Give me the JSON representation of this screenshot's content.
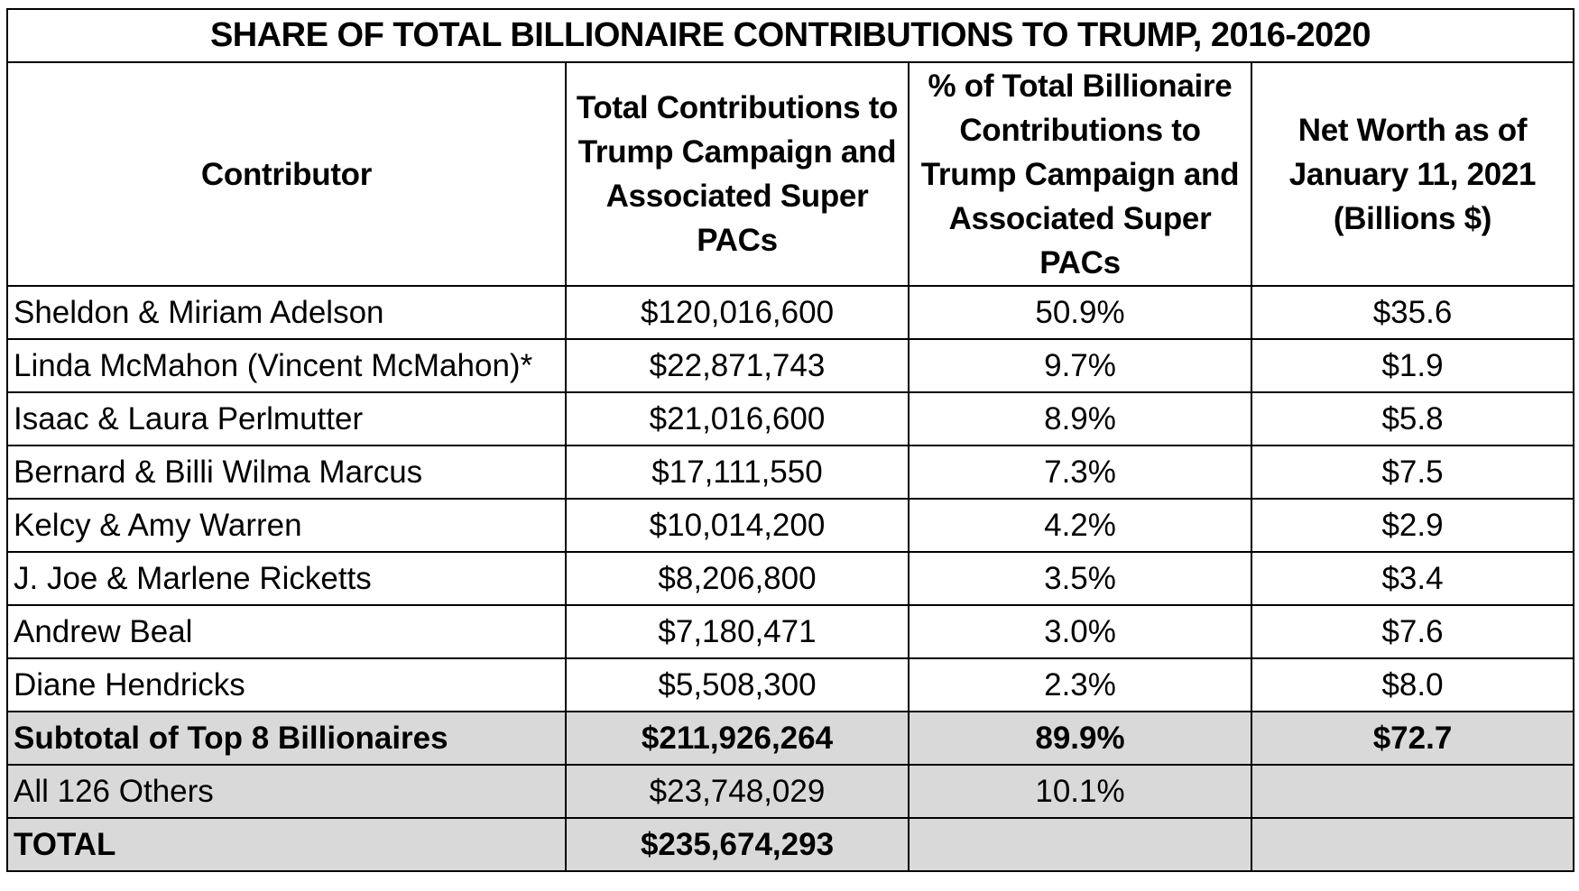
{
  "title": "SHARE OF TOTAL BILLIONAIRE CONTRIBUTIONS TO TRUMP, 2016-2020",
  "headers": [
    "Contributor",
    "Total Contributions to Trump Campaign and Associated Super PACs",
    "% of Total Billionaire Contributions to Trump Campaign and Associated Super PACs",
    "Net Worth as of January 11, 2021 (Billions $)"
  ],
  "rows": [
    {
      "contributor": "Sheldon & Miriam Adelson",
      "total": "$120,016,600",
      "percent": "50.9%",
      "net_worth": "$35.6"
    },
    {
      "contributor": "Linda McMahon (Vincent McMahon)*",
      "total": "$22,871,743",
      "percent": "9.7%",
      "net_worth": "$1.9"
    },
    {
      "contributor": "Isaac & Laura Perlmutter",
      "total": "$21,016,600",
      "percent": "8.9%",
      "net_worth": "$5.8"
    },
    {
      "contributor": "Bernard & Billi Wilma Marcus",
      "total": "$17,111,550",
      "percent": "7.3%",
      "net_worth": "$7.5"
    },
    {
      "contributor": "Kelcy & Amy Warren",
      "total": "$10,014,200",
      "percent": "4.2%",
      "net_worth": "$2.9"
    },
    {
      "contributor": "J. Joe & Marlene Ricketts",
      "total": "$8,206,800",
      "percent": "3.5%",
      "net_worth": "$3.4"
    },
    {
      "contributor": "Andrew Beal",
      "total": "$7,180,471",
      "percent": "3.0%",
      "net_worth": "$7.6"
    },
    {
      "contributor": "Diane Hendricks",
      "total": "$5,508,300",
      "percent": "2.3%",
      "net_worth": "$8.0"
    }
  ],
  "subtotal": {
    "contributor": "Subtotal of Top 8 Billionaires",
    "total": "$211,926,264",
    "percent": "89.9%",
    "net_worth": "$72.7"
  },
  "others": {
    "contributor": "All 126 Others",
    "total": "$23,748,029",
    "percent": "10.1%"
  },
  "grand_total": {
    "contributor": "TOTAL",
    "total": "$235,674,293"
  },
  "colors": {
    "border": "#000000",
    "shade": "#d9d9d9",
    "background": "#ffffff"
  }
}
